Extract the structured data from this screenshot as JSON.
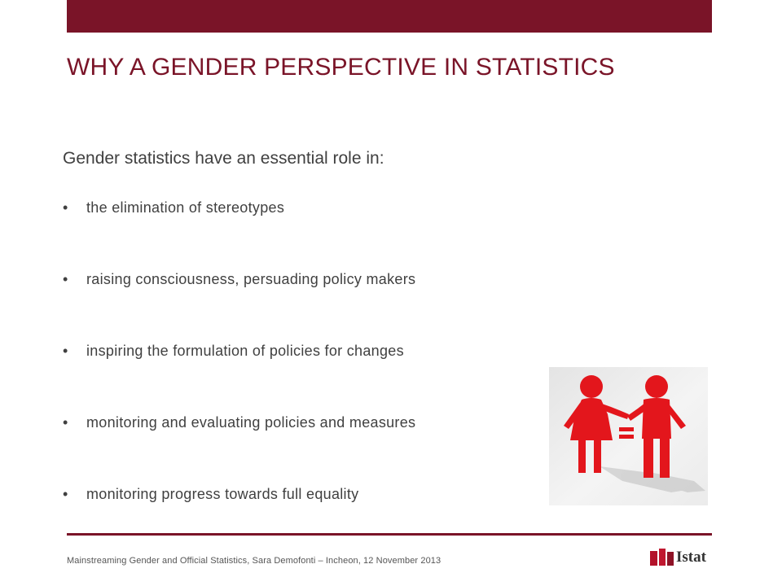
{
  "slide": {
    "title": "WHY A GENDER PERSPECTIVE IN STATISTICS",
    "intro": "Gender statistics have an essential role in:",
    "bullet_symbol": "•",
    "bullets": [
      "the elimination of stereotypes",
      "raising consciousness, persuading policy makers",
      "inspiring the formulation of policies for changes",
      "monitoring and evaluating policies and measures",
      "monitoring progress towards full equality"
    ]
  },
  "footer": {
    "text": "Mainstreaming Gender and Official Statistics, Sara Demofonti – Incheon, 12 November 2013",
    "logo_text": "Istat"
  },
  "colors": {
    "brand": "#7a1428",
    "body_text": "#404040",
    "figure_red": "#e3161c"
  }
}
